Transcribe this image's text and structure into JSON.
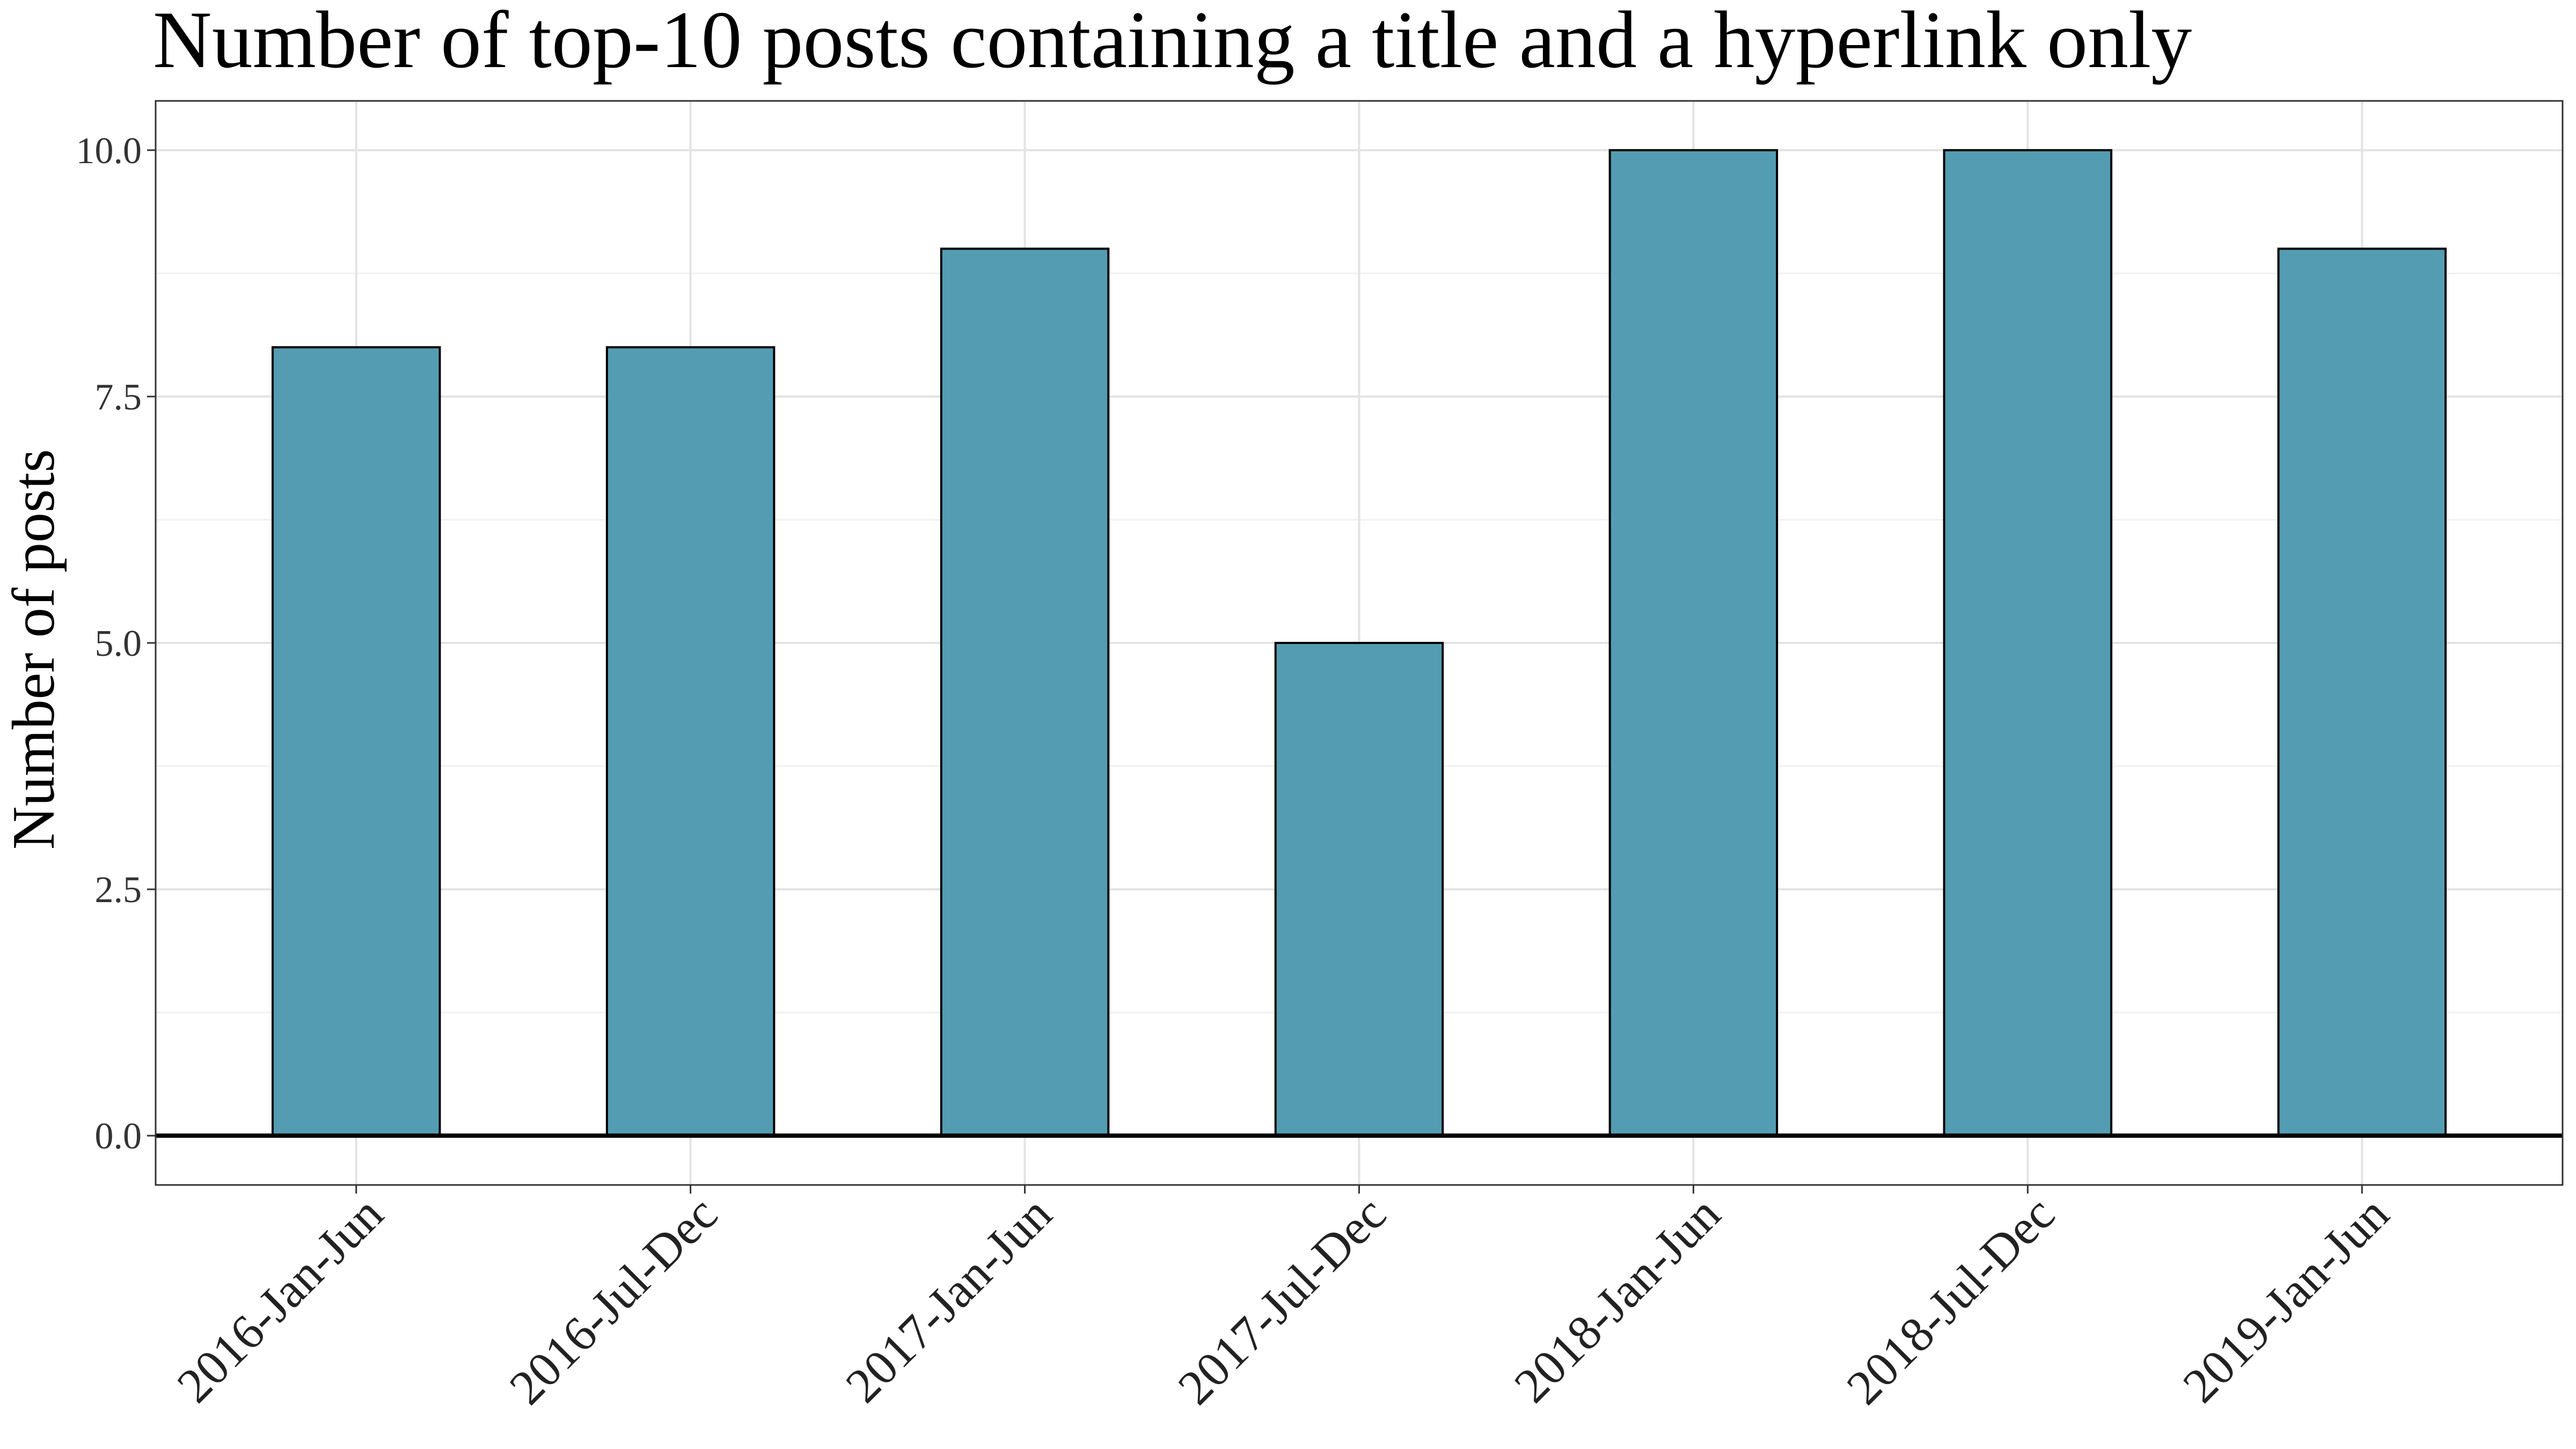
{
  "chart_data": {
    "type": "bar",
    "title": "Number of top-10 posts containing a title and a hyperlink only",
    "xlabel": "",
    "ylabel": "Number of posts",
    "categories": [
      "2016-Jan-Jun",
      "2016-Jul-Dec",
      "2017-Jan-Jun",
      "2017-Jul-Dec",
      "2018-Jan-Jun",
      "2018-Jul-Dec",
      "2019-Jan-Jun"
    ],
    "values": [
      8,
      8,
      9,
      5,
      10,
      10,
      9
    ],
    "ylim": [
      -0.5,
      10.5
    ],
    "yticks": [
      0,
      2.5,
      5,
      7.5,
      10
    ],
    "ytick_labels": [
      "0.0",
      "2.5",
      "5.0",
      "7.5",
      "10.0"
    ],
    "grid": true,
    "legend": "none",
    "colors": {
      "bar_fill": "#549cb2",
      "bar_stroke": "#000000",
      "grid_major": "#e3e3e3",
      "grid_minor": "#f1f1f1",
      "panel_border": "#333333",
      "baseline": "#000000"
    }
  }
}
